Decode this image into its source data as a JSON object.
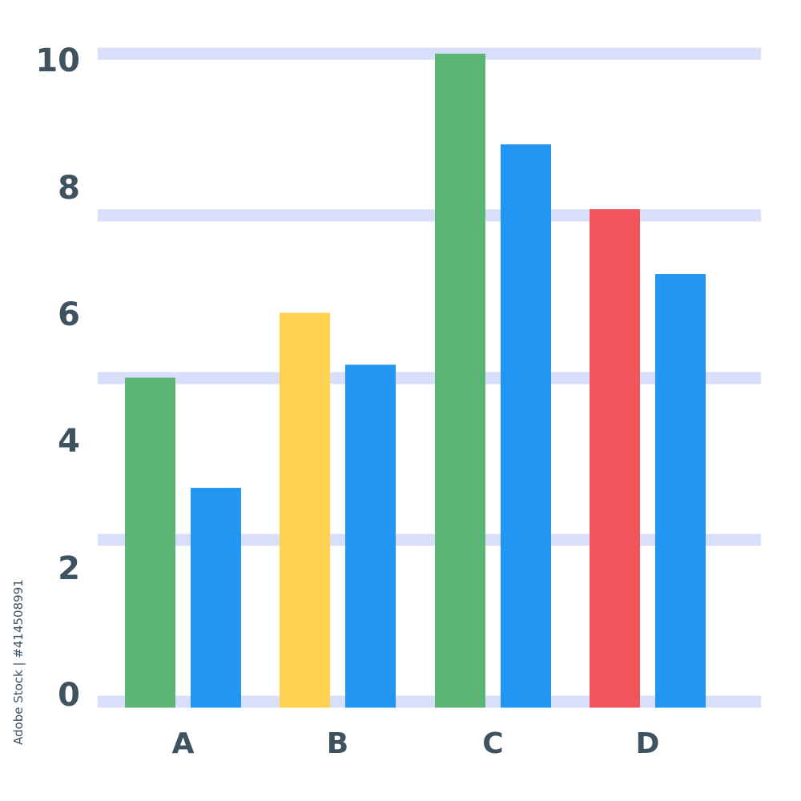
{
  "chart_data": {
    "type": "bar",
    "categories": [
      "A",
      "B",
      "C",
      "D"
    ],
    "series": [
      {
        "values": [
          5,
          6,
          10,
          7.6
        ],
        "colors": [
          "#5cb574",
          "#fed250",
          "#5cb574",
          "#f2545b"
        ]
      },
      {
        "values": [
          3.3,
          5.2,
          8.6,
          6.6
        ],
        "colors": [
          "#2196f3",
          "#2196f3",
          "#2196f3",
          "#2196f3"
        ]
      }
    ],
    "y_ticks": [
      "0",
      "2",
      "4",
      "6",
      "8",
      "10"
    ],
    "ylim": [
      0,
      10
    ],
    "gridlines": true,
    "title": "",
    "xlabel": "",
    "ylabel": ""
  },
  "colors": {
    "grid": "#d9defa",
    "axis_text": "#3e5260"
  },
  "watermark": "Adobe Stock | #414508991"
}
